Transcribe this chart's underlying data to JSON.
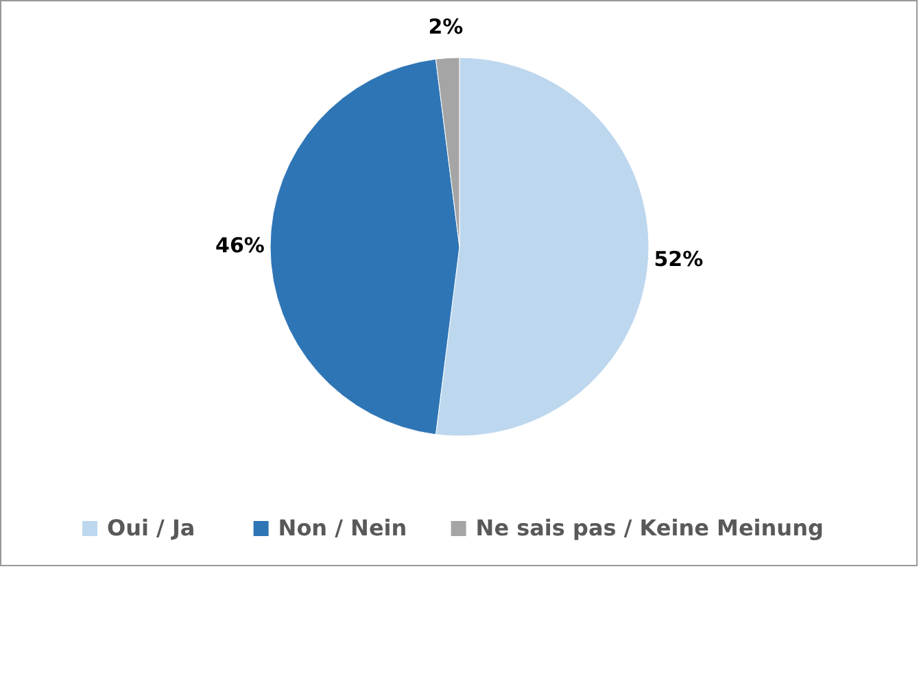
{
  "chart_data": {
    "type": "pie",
    "categories": [
      "Oui / Ja",
      "Non / Nein",
      "Ne sais pas / Keine Meinung"
    ],
    "values": [
      52,
      46,
      2
    ],
    "colors": [
      "#bdd7ee",
      "#2e75b6",
      "#a5a5a5"
    ],
    "data_labels": true,
    "value_labels": [
      "52%",
      "46%",
      "2%"
    ],
    "legend": "bottom"
  }
}
